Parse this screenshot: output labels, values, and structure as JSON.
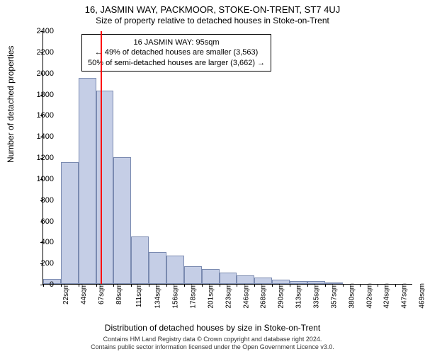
{
  "title_line1": "16, JASMIN WAY, PACKMOOR, STOKE-ON-TRENT, ST7 4UJ",
  "title_line2": "Size of property relative to detached houses in Stoke-on-Trent",
  "ylabel": "Number of detached properties",
  "xlabel": "Distribution of detached houses by size in Stoke-on-Trent",
  "credits_line1": "Contains HM Land Registry data © Crown copyright and database right 2024.",
  "credits_line2": "Contains public sector information licensed under the Open Government Licence v3.0.",
  "chart": {
    "type": "histogram",
    "ylim": [
      0,
      2400
    ],
    "ytick_step": 200,
    "bar_fill": "#c5cee6",
    "bar_stroke": "#7a8ab0",
    "background": "#ffffff",
    "marker_color": "#ff0000",
    "marker_value": 95,
    "marker_bar_index": 3,
    "x_tick_labels": [
      "22sqm",
      "44sqm",
      "67sqm",
      "89sqm",
      "111sqm",
      "134sqm",
      "156sqm",
      "178sqm",
      "201sqm",
      "223sqm",
      "246sqm",
      "268sqm",
      "290sqm",
      "313sqm",
      "335sqm",
      "357sqm",
      "380sqm",
      "402sqm",
      "424sqm",
      "447sqm",
      "469sqm"
    ],
    "values": [
      45,
      1150,
      1950,
      1830,
      1200,
      450,
      300,
      270,
      170,
      140,
      110,
      80,
      60,
      40,
      30,
      30,
      12,
      0,
      0,
      0,
      0
    ],
    "label_fontsize": 12,
    "tick_fontsize": 11
  },
  "annotation": {
    "line1": "16 JASMIN WAY: 95sqm",
    "line2": "← 49% of detached houses are smaller (3,563)",
    "line3": "50% of semi-detached houses are larger (3,662) →"
  }
}
